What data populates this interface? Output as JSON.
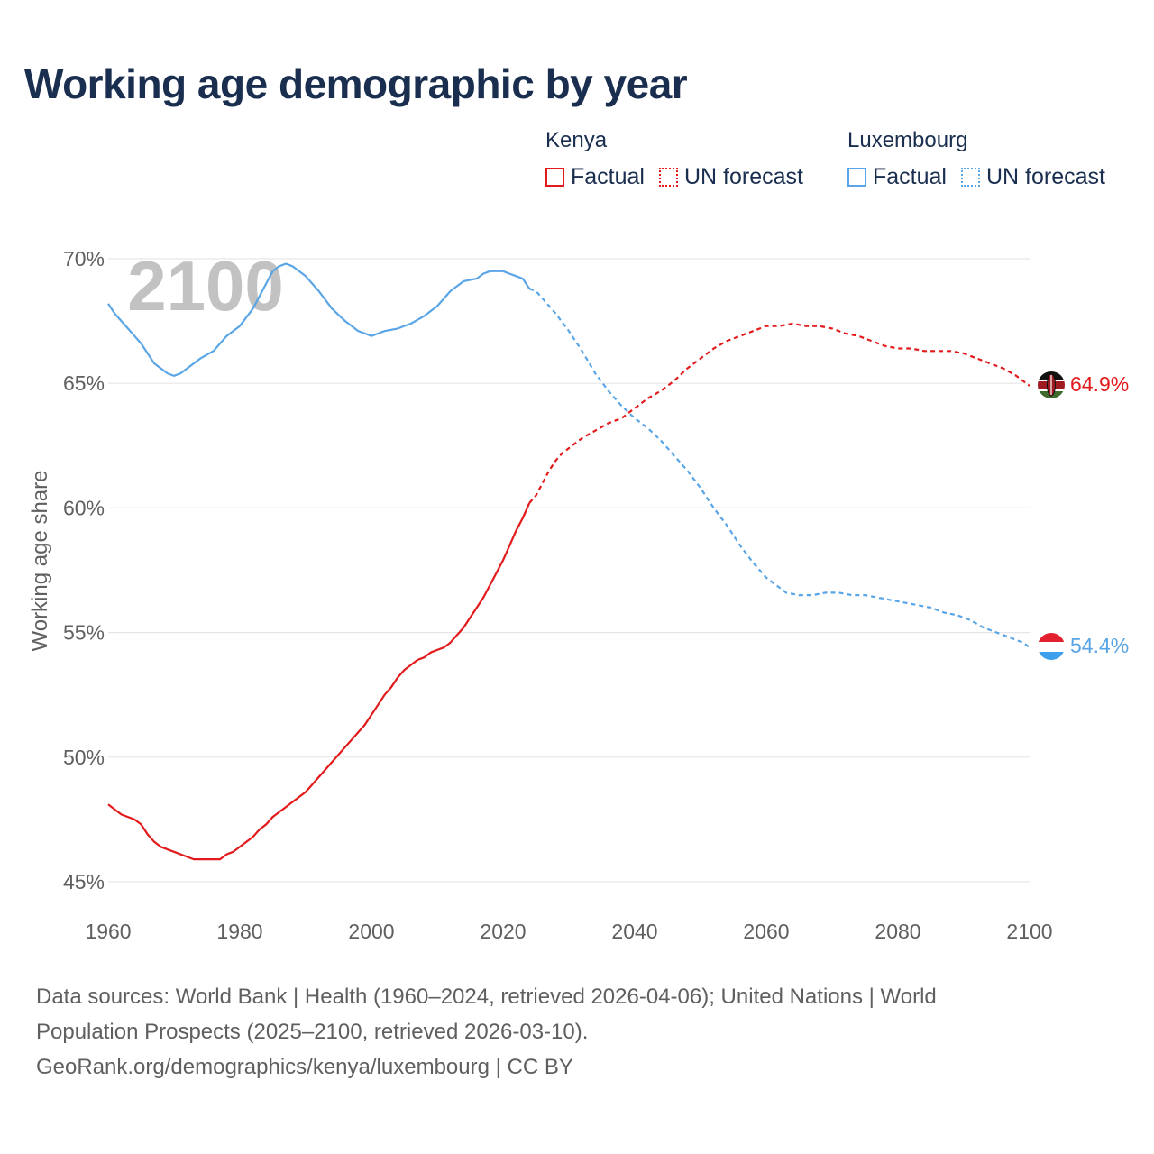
{
  "title": "Working age demographic by year",
  "legend": {
    "groups": [
      {
        "name": "Kenya",
        "factual": "Factual",
        "forecast": "UN forecast",
        "color": "#e31a1c"
      },
      {
        "name": "Luxembourg",
        "factual": "Factual",
        "forecast": "UN forecast",
        "color": "#5aa5e6"
      }
    ]
  },
  "year_watermark": "2100",
  "footer": {
    "line1": "Data sources: World Bank | Health (1960–2024, retrieved 2026-04-06); United Nations | World",
    "line2": "Population Prospects (2025–2100, retrieved 2026-03-10).",
    "line3": "GeoRank.org/demographics/kenya/luxembourg | CC BY"
  },
  "chart_data": {
    "type": "line",
    "title": "Working age demographic by year",
    "xlabel": "",
    "ylabel": "Working age share",
    "xlim": [
      1960,
      2100
    ],
    "ylim": [
      45,
      70
    ],
    "x_ticks": [
      "1960",
      "1980",
      "2000",
      "2020",
      "2040",
      "2060",
      "2080",
      "2100"
    ],
    "y_ticks": [
      "45%",
      "50%",
      "55%",
      "60%",
      "65%",
      "70%"
    ],
    "grid": true,
    "legend_position": "top-right",
    "forecast_start_year": 2024,
    "series": [
      {
        "name": "Kenya",
        "color": "#e31a1c",
        "end_label": "64.9%",
        "points": [
          [
            1960,
            48.1
          ],
          [
            1962,
            47.7
          ],
          [
            1964,
            47.5
          ],
          [
            1965,
            47.3
          ],
          [
            1966,
            46.9
          ],
          [
            1967,
            46.6
          ],
          [
            1968,
            46.4
          ],
          [
            1970,
            46.2
          ],
          [
            1972,
            46.0
          ],
          [
            1973,
            45.9
          ],
          [
            1976,
            45.9
          ],
          [
            1977,
            45.9
          ],
          [
            1978,
            46.1
          ],
          [
            1979,
            46.2
          ],
          [
            1980,
            46.4
          ],
          [
            1982,
            46.8
          ],
          [
            1983,
            47.1
          ],
          [
            1984,
            47.3
          ],
          [
            1985,
            47.6
          ],
          [
            1987,
            48.0
          ],
          [
            1990,
            48.6
          ],
          [
            1993,
            49.5
          ],
          [
            1996,
            50.4
          ],
          [
            1999,
            51.3
          ],
          [
            2001,
            52.1
          ],
          [
            2002,
            52.5
          ],
          [
            2003,
            52.8
          ],
          [
            2004,
            53.2
          ],
          [
            2005,
            53.5
          ],
          [
            2006,
            53.7
          ],
          [
            2007,
            53.9
          ],
          [
            2008,
            54.0
          ],
          [
            2009,
            54.2
          ],
          [
            2010,
            54.3
          ],
          [
            2011,
            54.4
          ],
          [
            2012,
            54.6
          ],
          [
            2013,
            54.9
          ],
          [
            2014,
            55.2
          ],
          [
            2015,
            55.6
          ],
          [
            2016,
            56.0
          ],
          [
            2017,
            56.4
          ],
          [
            2018,
            56.9
          ],
          [
            2019,
            57.4
          ],
          [
            2020,
            57.9
          ],
          [
            2021,
            58.5
          ],
          [
            2022,
            59.1
          ],
          [
            2023,
            59.6
          ],
          [
            2024,
            60.2
          ],
          [
            2025,
            60.5
          ],
          [
            2026,
            61.0
          ],
          [
            2027,
            61.5
          ],
          [
            2028,
            61.9
          ],
          [
            2029,
            62.2
          ],
          [
            2030,
            62.4
          ],
          [
            2032,
            62.8
          ],
          [
            2034,
            63.1
          ],
          [
            2036,
            63.4
          ],
          [
            2038,
            63.6
          ],
          [
            2040,
            64.0
          ],
          [
            2042,
            64.4
          ],
          [
            2044,
            64.7
          ],
          [
            2046,
            65.1
          ],
          [
            2048,
            65.6
          ],
          [
            2050,
            66.0
          ],
          [
            2052,
            66.4
          ],
          [
            2054,
            66.7
          ],
          [
            2056,
            66.9
          ],
          [
            2058,
            67.1
          ],
          [
            2060,
            67.3
          ],
          [
            2062,
            67.3
          ],
          [
            2064,
            67.4
          ],
          [
            2066,
            67.3
          ],
          [
            2068,
            67.3
          ],
          [
            2070,
            67.2
          ],
          [
            2072,
            67.0
          ],
          [
            2074,
            66.9
          ],
          [
            2076,
            66.7
          ],
          [
            2078,
            66.5
          ],
          [
            2080,
            66.4
          ],
          [
            2082,
            66.4
          ],
          [
            2084,
            66.3
          ],
          [
            2086,
            66.3
          ],
          [
            2088,
            66.3
          ],
          [
            2090,
            66.2
          ],
          [
            2092,
            66.0
          ],
          [
            2094,
            65.8
          ],
          [
            2096,
            65.6
          ],
          [
            2098,
            65.3
          ],
          [
            2100,
            64.9
          ]
        ]
      },
      {
        "name": "Luxembourg",
        "color": "#5aa5e6",
        "end_label": "54.4%",
        "points": [
          [
            1960,
            68.2
          ],
          [
            1961,
            67.8
          ],
          [
            1962,
            67.5
          ],
          [
            1963,
            67.2
          ],
          [
            1964,
            66.9
          ],
          [
            1965,
            66.6
          ],
          [
            1966,
            66.2
          ],
          [
            1967,
            65.8
          ],
          [
            1968,
            65.6
          ],
          [
            1969,
            65.4
          ],
          [
            1970,
            65.3
          ],
          [
            1971,
            65.4
          ],
          [
            1972,
            65.6
          ],
          [
            1973,
            65.8
          ],
          [
            1974,
            66.0
          ],
          [
            1976,
            66.3
          ],
          [
            1978,
            66.9
          ],
          [
            1980,
            67.3
          ],
          [
            1982,
            68.0
          ],
          [
            1984,
            69.0
          ],
          [
            1985,
            69.5
          ],
          [
            1986,
            69.7
          ],
          [
            1987,
            69.8
          ],
          [
            1988,
            69.7
          ],
          [
            1990,
            69.3
          ],
          [
            1992,
            68.7
          ],
          [
            1994,
            68.0
          ],
          [
            1996,
            67.5
          ],
          [
            1997,
            67.3
          ],
          [
            1998,
            67.1
          ],
          [
            1999,
            67.0
          ],
          [
            2000,
            66.9
          ],
          [
            2001,
            67.0
          ],
          [
            2002,
            67.1
          ],
          [
            2004,
            67.2
          ],
          [
            2006,
            67.4
          ],
          [
            2008,
            67.7
          ],
          [
            2010,
            68.1
          ],
          [
            2012,
            68.7
          ],
          [
            2013,
            68.9
          ],
          [
            2014,
            69.1
          ],
          [
            2016,
            69.2
          ],
          [
            2017,
            69.4
          ],
          [
            2018,
            69.5
          ],
          [
            2020,
            69.5
          ],
          [
            2021,
            69.4
          ],
          [
            2022,
            69.3
          ],
          [
            2023,
            69.2
          ],
          [
            2024,
            68.8
          ],
          [
            2025,
            68.7
          ],
          [
            2026,
            68.4
          ],
          [
            2028,
            67.8
          ],
          [
            2030,
            67.1
          ],
          [
            2032,
            66.3
          ],
          [
            2034,
            65.4
          ],
          [
            2036,
            64.7
          ],
          [
            2038,
            64.1
          ],
          [
            2040,
            63.6
          ],
          [
            2042,
            63.2
          ],
          [
            2044,
            62.7
          ],
          [
            2046,
            62.1
          ],
          [
            2048,
            61.5
          ],
          [
            2050,
            60.8
          ],
          [
            2052,
            60.0
          ],
          [
            2054,
            59.3
          ],
          [
            2056,
            58.5
          ],
          [
            2058,
            57.8
          ],
          [
            2060,
            57.2
          ],
          [
            2062,
            56.8
          ],
          [
            2063,
            56.6
          ],
          [
            2065,
            56.5
          ],
          [
            2067,
            56.5
          ],
          [
            2069,
            56.6
          ],
          [
            2071,
            56.6
          ],
          [
            2073,
            56.5
          ],
          [
            2075,
            56.5
          ],
          [
            2077,
            56.4
          ],
          [
            2079,
            56.3
          ],
          [
            2081,
            56.2
          ],
          [
            2083,
            56.1
          ],
          [
            2085,
            56.0
          ],
          [
            2087,
            55.8
          ],
          [
            2089,
            55.7
          ],
          [
            2091,
            55.5
          ],
          [
            2093,
            55.2
          ],
          [
            2095,
            55.0
          ],
          [
            2097,
            54.8
          ],
          [
            2099,
            54.6
          ],
          [
            2100,
            54.4
          ]
        ]
      }
    ]
  }
}
